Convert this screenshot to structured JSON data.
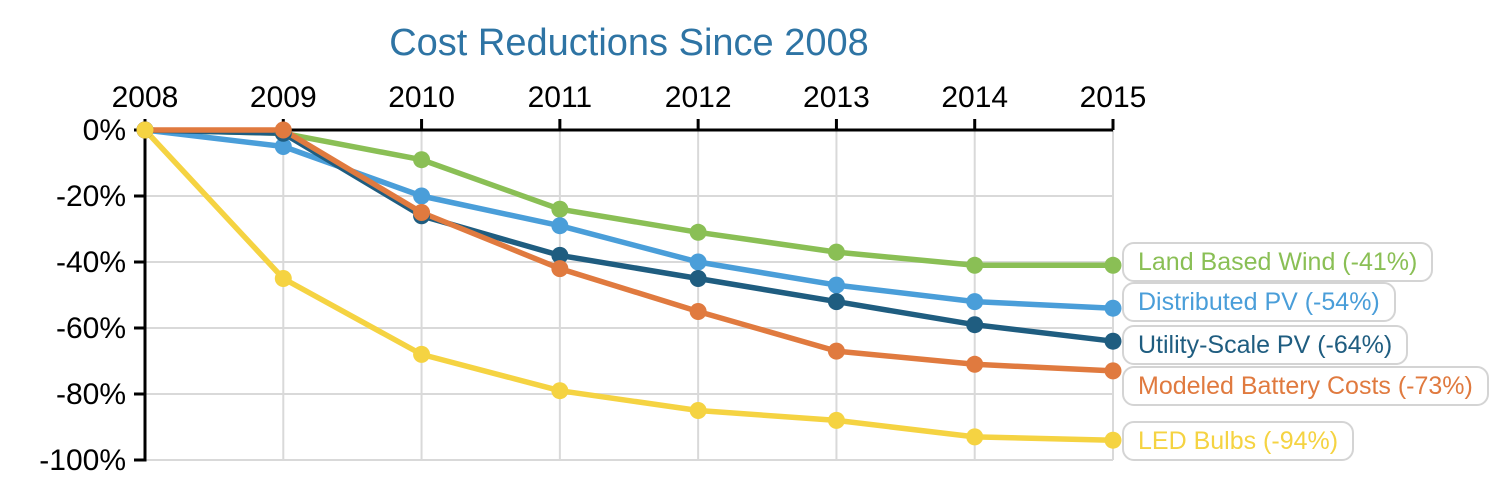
{
  "title": "Cost Reductions Since 2008",
  "colors": {
    "title": "#2e74a4",
    "axis": "#000000",
    "grid": "#d9d9d9",
    "tick_labels": "#000000",
    "legend_border": "#d4d4d4",
    "background": "#ffffff"
  },
  "chart_data": {
    "type": "line",
    "title": "Cost Reductions Since 2008",
    "x_tick_labels": [
      "2008",
      "2009",
      "2010",
      "2011",
      "2012",
      "2013",
      "2014",
      "2015"
    ],
    "y_tick_labels": [
      "0%",
      "-20%",
      "-40%",
      "-60%",
      "-80%",
      "-100%"
    ],
    "ylim": [
      -100,
      0
    ],
    "grid": true,
    "x_axis_position": "top",
    "legend_position": "right",
    "series": [
      {
        "name": "Land Based Wind",
        "legend_label": "Land Based Wind (-41%)",
        "color": "#8abf55",
        "values": [
          0,
          -1,
          -9,
          -24,
          -31,
          -37,
          -41,
          -41
        ]
      },
      {
        "name": "Distributed PV",
        "legend_label": "Distributed PV (-54%)",
        "color": "#4a9ed9",
        "values": [
          0,
          -5,
          -20,
          -29,
          -40,
          -47,
          -52,
          -54
        ]
      },
      {
        "name": "Utility-Scale PV",
        "legend_label": "Utility-Scale PV (-64%)",
        "color": "#1f5d80",
        "values": [
          0,
          -1,
          -26,
          -38,
          -45,
          -52,
          -59,
          -64
        ]
      },
      {
        "name": "Modeled Battery Costs",
        "legend_label": "Modeled Battery Costs (-73%)",
        "color": "#e07a3f",
        "values": [
          0,
          0,
          -25,
          -42,
          -55,
          -67,
          -71,
          -73
        ]
      },
      {
        "name": "LED Bulbs",
        "legend_label": "LED Bulbs (-94%)",
        "color": "#f5d342",
        "values": [
          0,
          -45,
          -68,
          -79,
          -85,
          -88,
          -93,
          -94
        ]
      }
    ]
  }
}
